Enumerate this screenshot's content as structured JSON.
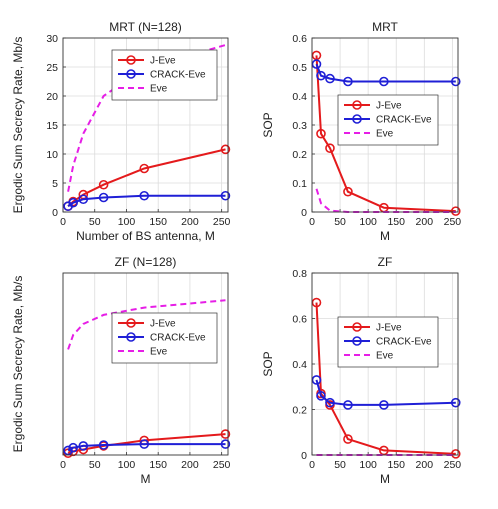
{
  "chart_data": [
    {
      "type": "line",
      "title": "MRT (N=128)",
      "xlabel": "Number of BS antenna, M",
      "ylabel": "Ergodic Sum Secrecy Rate,  Mb/s",
      "xlim": [
        0,
        260
      ],
      "ylim": [
        0,
        30
      ],
      "xticks": [
        0,
        50,
        100,
        150,
        200,
        250
      ],
      "yticks": [
        0,
        5,
        10,
        15,
        20,
        25,
        30
      ],
      "grid": true,
      "legend_position": "top-left",
      "series": [
        {
          "name": "J-Eve",
          "color": "#e41a1c",
          "style": "solid",
          "marker": "circle",
          "x": [
            8,
            16,
            32,
            64,
            128,
            256
          ],
          "y": [
            1.0,
            1.8,
            3.0,
            4.7,
            7.5,
            10.8
          ]
        },
        {
          "name": "CRACK-Eve",
          "color": "#1f1fd6",
          "style": "solid",
          "marker": "circle",
          "x": [
            8,
            16,
            32,
            64,
            128,
            256
          ],
          "y": [
            1.0,
            1.6,
            2.2,
            2.5,
            2.8,
            2.8
          ]
        },
        {
          "name": "Eve",
          "color": "#e61ee6",
          "style": "dashed",
          "marker": "none",
          "x": [
            8,
            16,
            32,
            64,
            128,
            256
          ],
          "y": [
            3.5,
            8.0,
            13.5,
            20.0,
            24.8,
            28.8
          ]
        }
      ]
    },
    {
      "type": "line",
      "title": "MRT",
      "xlabel": "M",
      "ylabel": "SOP",
      "xlim": [
        0,
        260
      ],
      "ylim": [
        0,
        0.6
      ],
      "xticks": [
        0,
        50,
        100,
        150,
        200,
        250
      ],
      "yticks": [
        0,
        0.1,
        0.2,
        0.3,
        0.4,
        0.5,
        0.6
      ],
      "grid": true,
      "legend_position": "center-right",
      "series": [
        {
          "name": "J-Eve",
          "color": "#e41a1c",
          "style": "solid",
          "marker": "circle",
          "x": [
            8,
            16,
            32,
            64,
            128,
            256
          ],
          "y": [
            0.54,
            0.27,
            0.22,
            0.07,
            0.015,
            0.003
          ]
        },
        {
          "name": "CRACK-Eve",
          "color": "#1f1fd6",
          "style": "solid",
          "marker": "circle",
          "x": [
            8,
            16,
            32,
            64,
            128,
            256
          ],
          "y": [
            0.51,
            0.47,
            0.46,
            0.45,
            0.45,
            0.45
          ]
        },
        {
          "name": "Eve",
          "color": "#e61ee6",
          "style": "dashed",
          "marker": "none",
          "x": [
            8,
            16,
            32,
            64,
            128,
            256
          ],
          "y": [
            0.08,
            0.03,
            0.005,
            0.0,
            0.0,
            0.0
          ]
        }
      ]
    },
    {
      "type": "line",
      "title": "ZF (N=128)",
      "xlabel": "M",
      "ylabel": "Ergodic Sum Secrecy Rate,  Mb/s",
      "xlim": [
        0,
        260
      ],
      "ylim": [
        0,
        100
      ],
      "xticks": [
        0,
        50,
        100,
        150,
        200,
        250
      ],
      "yticks": [],
      "grid": true,
      "legend_position": "top-right",
      "series": [
        {
          "name": "J-Eve",
          "color": "#e41a1c",
          "style": "solid",
          "marker": "circle",
          "x": [
            8,
            16,
            32,
            64,
            128,
            256
          ],
          "y": [
            1.0,
            2.0,
            3.0,
            5.0,
            8.0,
            11.5
          ]
        },
        {
          "name": "CRACK-Eve",
          "color": "#1f1fd6",
          "style": "solid",
          "marker": "circle",
          "x": [
            8,
            16,
            32,
            64,
            128,
            256
          ],
          "y": [
            2.5,
            4.0,
            5.0,
            5.5,
            6.0,
            6.0
          ]
        },
        {
          "name": "Eve",
          "color": "#e61ee6",
          "style": "dashed",
          "marker": "none",
          "x": [
            8,
            16,
            32,
            64,
            128,
            256
          ],
          "y": [
            58,
            66,
            72,
            77,
            81,
            85
          ]
        }
      ]
    },
    {
      "type": "line",
      "title": "ZF",
      "xlabel": "M",
      "ylabel": "SOP",
      "xlim": [
        0,
        260
      ],
      "ylim": [
        0,
        0.8
      ],
      "xticks": [
        0,
        50,
        100,
        150,
        200,
        250
      ],
      "yticks": [
        0,
        0.2,
        0.4,
        0.6,
        0.8
      ],
      "grid": true,
      "legend_position": "top-right",
      "series": [
        {
          "name": "J-Eve",
          "color": "#e41a1c",
          "style": "solid",
          "marker": "circle",
          "x": [
            8,
            16,
            32,
            64,
            128,
            256
          ],
          "y": [
            0.67,
            0.27,
            0.22,
            0.07,
            0.02,
            0.005
          ]
        },
        {
          "name": "CRACK-Eve",
          "color": "#1f1fd6",
          "style": "solid",
          "marker": "circle",
          "x": [
            8,
            16,
            32,
            64,
            128,
            256
          ],
          "y": [
            0.33,
            0.26,
            0.23,
            0.22,
            0.22,
            0.23
          ]
        },
        {
          "name": "Eve",
          "color": "#e61ee6",
          "style": "dashed",
          "marker": "none",
          "x": [
            8,
            16,
            32,
            64,
            128,
            256
          ],
          "y": [
            0.0,
            0.0,
            0.0,
            0.0,
            0.0,
            0.0
          ]
        }
      ]
    }
  ]
}
